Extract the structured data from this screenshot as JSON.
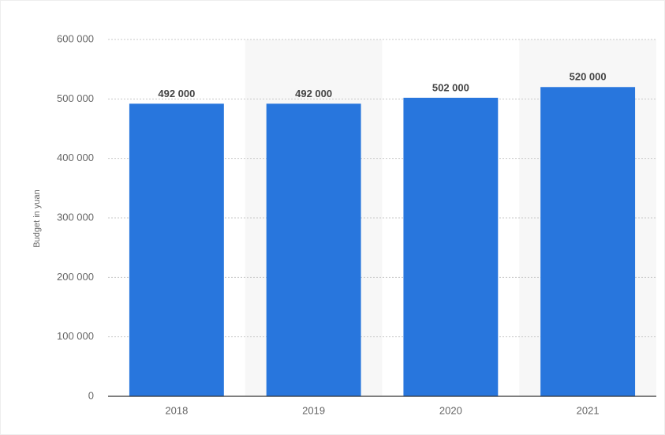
{
  "chart_data": {
    "type": "bar",
    "y_label": "Budget in yuan",
    "categories": [
      "2018",
      "2019",
      "2020",
      "2021"
    ],
    "values": [
      492000,
      492000,
      502000,
      520000
    ],
    "value_labels": [
      "492 000",
      "492 000",
      "502 000",
      "520 000"
    ],
    "color": "#2876dd",
    "ylim": [
      0,
      600000
    ],
    "yticks": [
      0,
      {
        "value": 100000,
        "label": "100 000"
      },
      {
        "value": 200000,
        "label": "200 000"
      },
      {
        "value": 300000,
        "label": "300 000"
      },
      {
        "value": 400000,
        "label": "400 000"
      },
      {
        "value": 500000,
        "label": "500 000"
      },
      {
        "value": 600000,
        "label": "600 000"
      }
    ],
    "grid": true
  }
}
